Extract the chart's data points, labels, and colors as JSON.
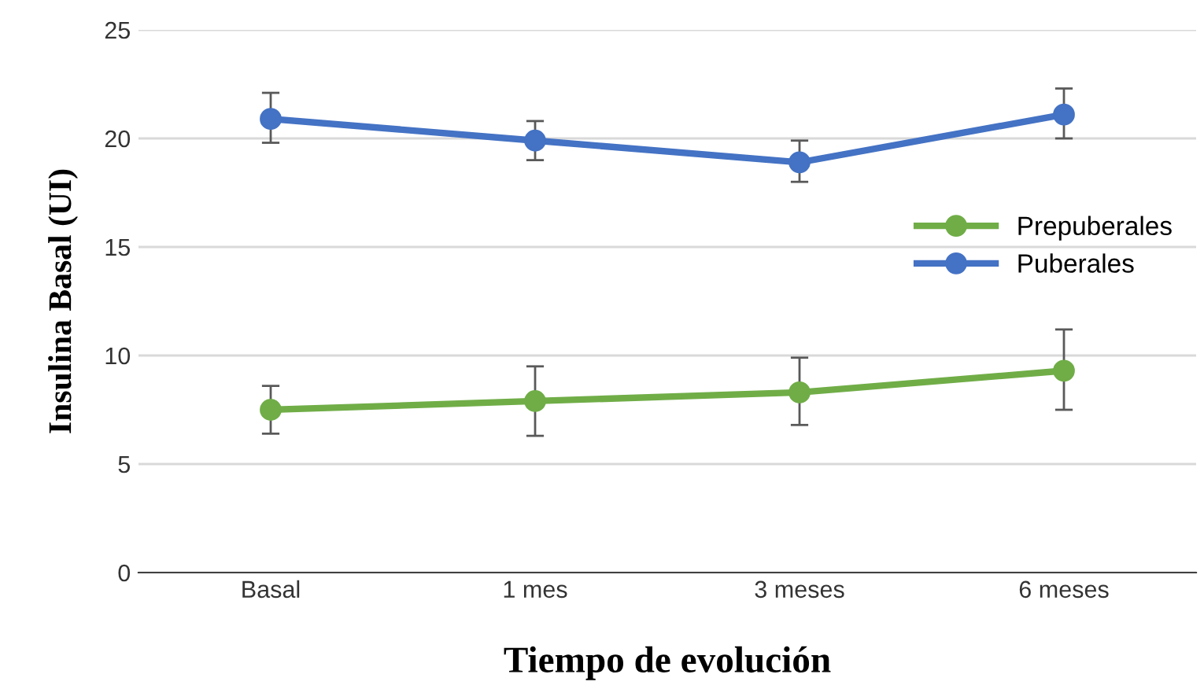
{
  "chart_data": {
    "type": "line",
    "xlabel": "Tiempo de evolución",
    "ylabel": "Insulina Basal (UI)",
    "categories": [
      "Basal",
      "1 mes",
      "3 meses",
      "6 meses"
    ],
    "series": [
      {
        "name": "Prepuberales",
        "color": "#70ad47",
        "values": [
          7.5,
          7.9,
          8.3,
          9.3
        ],
        "errors": [
          [
            6.4,
            8.6
          ],
          [
            6.3,
            9.5
          ],
          [
            6.8,
            9.9
          ],
          [
            7.5,
            11.2
          ]
        ]
      },
      {
        "name": "Puberales",
        "color": "#4472c4",
        "values": [
          20.9,
          19.9,
          18.9,
          21.1
        ],
        "errors": [
          [
            19.8,
            22.1
          ],
          [
            19.0,
            20.8
          ],
          [
            18.0,
            19.9
          ],
          [
            20.0,
            22.3
          ]
        ]
      }
    ],
    "ylim": [
      0,
      25
    ],
    "yticks": [
      0,
      5,
      10,
      15,
      20,
      25
    ],
    "grid": "y",
    "legend": "right",
    "marker": "circle",
    "line_style": "solid"
  }
}
